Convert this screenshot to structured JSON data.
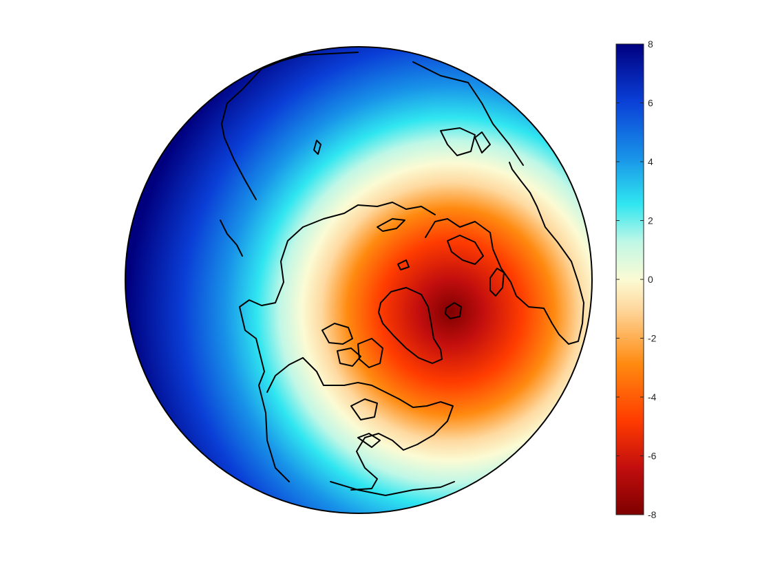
{
  "map": {
    "projection": "orthographic",
    "view": "northern hemisphere, centered near Greenland",
    "coastline_color": "#000000",
    "colormap": {
      "name": "diverging red-white-blue",
      "stops": [
        "#7f0000",
        "#d01010",
        "#ff3c00",
        "#ff8a10",
        "#fed9a0",
        "#fbfbd4",
        "#bff7e6",
        "#30e6f0",
        "#1892e8",
        "#0a3ed6",
        "#00007f"
      ]
    },
    "field": {
      "minimum_value": -8,
      "maximum_value": 8,
      "minimum_location": "east Greenland / Iceland region",
      "maximum_location": "outer rim of the disk (Pacific and Asian margins)"
    }
  },
  "colorbar": {
    "orientation": "vertical",
    "limits": [
      -8,
      8
    ],
    "ticks": [
      "8",
      "6",
      "4",
      "2",
      "0",
      "-2",
      "-4",
      "-6",
      "-8"
    ],
    "tick_values": [
      8,
      6,
      4,
      2,
      0,
      -2,
      -4,
      -6,
      -8
    ]
  }
}
